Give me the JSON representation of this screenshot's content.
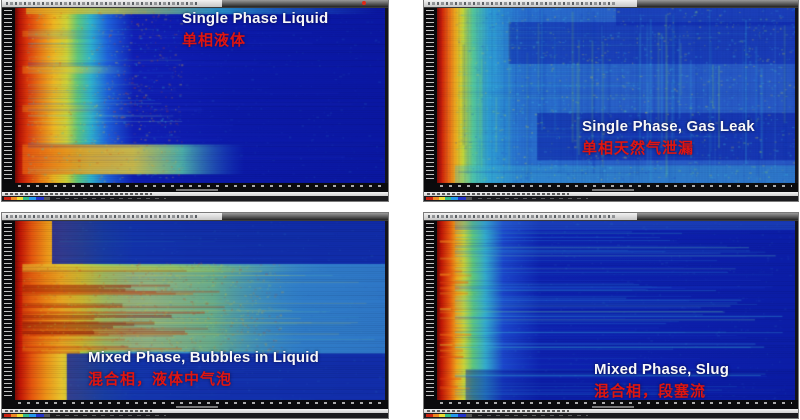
{
  "figure": {
    "background": "#ffffff",
    "label_color_en": "#f8f8f8",
    "label_color_zh": "#e01510",
    "chrome": {
      "titlebar_note": "tiny illegible spectrogram-software window title",
      "statusbar_note": "tiny illegible status text",
      "y_axis_note": "dense tiny white tick labels (illegible)",
      "x_axis_note": "dense tiny white tick labels (illegible)",
      "colorbar_colors": [
        "#cc2211",
        "#ee8822",
        "#eedd33",
        "#33bb88",
        "#2299ee",
        "#2233cc"
      ]
    }
  },
  "chart_data": [
    {
      "type": "heatmap",
      "title": "Single Phase Liquid",
      "title_zh": "单相液体",
      "colormap": "jet",
      "description": "Spectrogram: wide hot (red-orange) low-frequency band at left fading through yellow/cyan to uniform deep blue; warm horizontal band near bottom.",
      "pattern": {
        "seed": 7,
        "base": [
          [
            0,
            "#6e0a04"
          ],
          [
            0.012,
            "#b81406"
          ],
          [
            0.035,
            "#e03c0c"
          ],
          [
            0.07,
            "#ee7d14"
          ],
          [
            0.105,
            "#f0b822"
          ],
          [
            0.14,
            "#cfd438"
          ],
          [
            0.17,
            "#5fc87e"
          ],
          [
            0.205,
            "#2fb4cf"
          ],
          [
            0.25,
            "#1f63dc"
          ],
          [
            0.32,
            "#111fb6"
          ],
          [
            0.6,
            "#0c1aaa"
          ],
          [
            1,
            "#0b18a4"
          ]
        ],
        "bands": [
          {
            "x0": 0.03,
            "x1": 0.98,
            "y0": 0,
            "y1": 0.035,
            "a": 0.75,
            "grad": [
              [
                0,
                "#e8a020"
              ],
              [
                0.25,
                "#d8d840"
              ],
              [
                0.55,
                "#30b8d8"
              ],
              [
                1,
                "rgba(40,120,216,0)"
              ]
            ]
          },
          {
            "x0": 0.02,
            "x1": 0.62,
            "y0": 0.78,
            "y1": 0.95,
            "a": 0.85,
            "grad": [
              [
                0,
                "#e85a10"
              ],
              [
                0.3,
                "#f0a81e"
              ],
              [
                0.5,
                "#e8d43a"
              ],
              [
                0.72,
                "#58c8a8"
              ],
              [
                1,
                "rgba(30,100,210,0)"
              ]
            ]
          },
          {
            "x0": 0.02,
            "x1": 0.32,
            "y0": 0.33,
            "y1": 0.375,
            "a": 0.55,
            "grad": [
              [
                0,
                "#e87014"
              ],
              [
                0.45,
                "#d8cc38"
              ],
              [
                1,
                "rgba(40,150,200,0)"
              ]
            ]
          },
          {
            "x0": 0.02,
            "x1": 0.27,
            "y0": 0.555,
            "y1": 0.595,
            "a": 0.5,
            "grad": [
              [
                0,
                "#e87014"
              ],
              [
                0.45,
                "#d8cc38"
              ],
              [
                1,
                "rgba(40,150,200,0)"
              ]
            ]
          },
          {
            "x0": 0.02,
            "x1": 0.2,
            "y0": 0.13,
            "y1": 0.165,
            "a": 0.4,
            "grad": [
              [
                0,
                "#e88018"
              ],
              [
                0.5,
                "#c8cc40"
              ],
              [
                1,
                "rgba(40,150,200,0)"
              ]
            ]
          }
        ],
        "h": [
          {
            "n": 42,
            "y0": 0.04,
            "y1": 0.96,
            "x0": 0.035,
            "l0": 0.08,
            "l1": 0.42,
            "a0": 0.06,
            "a1": 0.22,
            "c": [
              "#35c8e0",
              "#2f7ae8",
              "#88d8c0"
            ],
            "t": 1
          },
          {
            "n": 26,
            "y0": 0.08,
            "y1": 0.92,
            "x0": 0.035,
            "l0": 0.3,
            "l1": 0.95,
            "a0": 0.04,
            "a1": 0.11,
            "c": [
              "#3050e8",
              "#2838c8"
            ],
            "t": 2
          }
        ],
        "sp": [
          {
            "n": 900,
            "x0": 0.03,
            "x1": 0.45,
            "y0": 0,
            "y1": 1,
            "a0": 0.05,
            "a1": 0.3,
            "c": [
              "#f0a020",
              "#e8d040",
              "#40c8c8",
              "#e05010"
            ]
          },
          {
            "n": 650,
            "x0": 0.3,
            "x1": 1,
            "y0": 0,
            "y1": 1,
            "a0": 0.03,
            "a1": 0.12,
            "c": [
              "#3060e0",
              "#40a8d8",
              "#1830b0"
            ]
          }
        ],
        "rows": 0.12
      }
    },
    {
      "type": "heatmap",
      "title": "Single Phase, Gas Leak",
      "title_zh": "单相天然气泄漏",
      "colormap": "jet",
      "description": "Spectrogram: narrow red band at left, body mottled cyan/green over medium blue with strong vertical streaking; darker blue bands at top and mid-right.",
      "pattern": {
        "seed": 11,
        "base": [
          [
            0,
            "#7c0c05"
          ],
          [
            0.012,
            "#cc1c07"
          ],
          [
            0.032,
            "#ee6812"
          ],
          [
            0.052,
            "#f0ae1e"
          ],
          [
            0.072,
            "#c8d838"
          ],
          [
            0.1,
            "#56c89a"
          ],
          [
            0.145,
            "#2f9ed6"
          ],
          [
            0.23,
            "#2a72d0"
          ],
          [
            0.5,
            "#2a62ca"
          ],
          [
            1,
            "#2858c6"
          ]
        ],
        "bands": [
          {
            "x0": 0.5,
            "x1": 1,
            "y0": 0,
            "y1": 0.1,
            "a": 0.45,
            "c": "#0c20aa"
          },
          {
            "x0": 0.2,
            "x1": 1,
            "y0": 0.08,
            "y1": 0.32,
            "a": 0.5,
            "c": "#0c20aa"
          },
          {
            "x0": 0.28,
            "x1": 1,
            "y0": 0.6,
            "y1": 0.87,
            "a": 0.55,
            "c": "#0a1ca4"
          },
          {
            "x0": 0.05,
            "x1": 1,
            "y0": 0.9,
            "y1": 1,
            "a": 0.3,
            "c": "#40c0d8"
          }
        ],
        "v": [
          {
            "n": 70,
            "x0": 0.07,
            "x1": 1,
            "y0": 0,
            "l0": 0.25,
            "l1": 0.95,
            "a0": 0.07,
            "a1": 0.22,
            "c": [
              "#38c0e0",
              "#40a0e0",
              "#1838b8",
              "#88d860"
            ],
            "t": 2
          },
          {
            "n": 30,
            "x0": 0.07,
            "x1": 1,
            "y0": 0,
            "l0": 0.5,
            "l1": 1,
            "a0": 0.05,
            "a1": 0.15,
            "c": [
              "#0e28a8",
              "#123cc0"
            ],
            "t": 3
          }
        ],
        "h": [
          {
            "n": 45,
            "y0": 0.02,
            "y1": 0.98,
            "x0": 0.06,
            "l0": 0.2,
            "l1": 0.9,
            "a0": 0.05,
            "a1": 0.16,
            "c": [
              "#40c8e0",
              "#2048c0",
              "#60d0c0"
            ],
            "t": 1
          }
        ],
        "sp": [
          {
            "n": 1700,
            "x0": 0.05,
            "x1": 1,
            "y0": 0,
            "y1": 1,
            "a0": 0.07,
            "a1": 0.28,
            "c": [
              "#48d0e0",
              "#3ab0e0",
              "#90dc60",
              "#e0e040",
              "#2050c8"
            ]
          }
        ],
        "rows": 0.07,
        "cols": 0.06
      }
    },
    {
      "type": "heatmap",
      "title": "Mixed Phase, Bubbles in Liquid",
      "title_zh": "混合相，液体中气泡",
      "colormap": "jet",
      "description": "Spectrogram: broad warm (red/orange/yellow) mid band with horizontal striations fading to teal at right; dark blue bands at top and bottom.",
      "pattern": {
        "seed": 5,
        "base": [
          [
            0,
            "#7c0b05"
          ],
          [
            0.015,
            "#c41806"
          ],
          [
            0.045,
            "#e6560e"
          ],
          [
            0.085,
            "#ee9418"
          ],
          [
            0.125,
            "#e8c42e"
          ],
          [
            0.18,
            "#a8d048"
          ],
          [
            0.24,
            "#54c49c"
          ],
          [
            0.32,
            "#3a9cd2"
          ],
          [
            0.55,
            "#3284cc"
          ],
          [
            1,
            "#2f78c8"
          ]
        ],
        "bands": [
          {
            "x0": 0.02,
            "x1": 0.78,
            "y0": 0.25,
            "y1": 0.73,
            "a": 0.5,
            "grad": [
              [
                0,
                "#e05c0e"
              ],
              [
                0.22,
                "#ee9c1a"
              ],
              [
                0.45,
                "#e6cc34"
              ],
              [
                0.68,
                "#9cd44e"
              ],
              [
                1,
                "rgba(60,160,200,0)"
              ]
            ]
          },
          {
            "x0": 0.02,
            "x1": 0.85,
            "y0": 0.24,
            "y1": 0.285,
            "a": 0.55,
            "grad": [
              [
                0,
                "#e8c030"
              ],
              [
                0.5,
                "#a8d44a"
              ],
              [
                1,
                "rgba(80,180,200,0)"
              ]
            ]
          },
          {
            "x0": 0.1,
            "x1": 1,
            "y0": 0,
            "y1": 0.24,
            "a": 0.82,
            "c": "#0b1ca4"
          },
          {
            "x0": 0.14,
            "x1": 1,
            "y0": 0.74,
            "y1": 1,
            "a": 0.8,
            "c": "#0b1ca4"
          }
        ],
        "h": [
          {
            "n": 26,
            "y0": 0.25,
            "y1": 0.73,
            "x0": 0.02,
            "l0": 0.15,
            "l1": 0.55,
            "a0": 0.15,
            "a1": 0.45,
            "c": [
              "#c82808",
              "#e06010",
              "#a82008"
            ],
            "t": 2
          },
          {
            "n": 8,
            "y0": 0.34,
            "y1": 0.7,
            "x0": 0.02,
            "l0": 0.18,
            "l1": 0.45,
            "a0": 0.3,
            "a1": 0.5,
            "c": [
              "#901606"
            ],
            "t": 3
          },
          {
            "n": 30,
            "y0": 0.25,
            "y1": 0.73,
            "x0": 0.3,
            "l0": 0.3,
            "l1": 0.68,
            "a0": 0.08,
            "a1": 0.2,
            "c": [
              "#e8d840",
              "#70d0b0",
              "#40b8d8"
            ],
            "t": 1
          },
          {
            "n": 16,
            "y0": 0,
            "y1": 0.24,
            "x0": 0.12,
            "l0": 0.3,
            "l1": 0.85,
            "a0": 0.04,
            "a1": 0.12,
            "c": [
              "#3358d8",
              "#38a8d8"
            ],
            "t": 1
          },
          {
            "n": 14,
            "y0": 0.76,
            "y1": 1,
            "x0": 0.14,
            "l0": 0.3,
            "l1": 0.85,
            "a0": 0.04,
            "a1": 0.12,
            "c": [
              "#3358d8",
              "#38a8d8"
            ],
            "t": 1
          }
        ],
        "sp": [
          {
            "n": 950,
            "x0": 0.02,
            "x1": 0.72,
            "y0": 0.23,
            "y1": 0.75,
            "a0": 0.08,
            "a1": 0.24,
            "c": [
              "#e87014",
              "#e8c030",
              "#b0d850",
              "#d83008"
            ]
          },
          {
            "n": 450,
            "x0": 0.1,
            "x1": 1,
            "y0": 0,
            "y1": 1,
            "a0": 0.04,
            "a1": 0.12,
            "c": [
              "#3060d0",
              "#40a8d8"
            ]
          }
        ],
        "rows": 0.12
      }
    },
    {
      "type": "heatmap",
      "title": "Mixed Phase, Slug",
      "title_zh": "混合相，段塞流",
      "colormap": "jet",
      "description": "Spectrogram: narrow red-orange band at left, deep blue body crossed by many thin horizontal cyan streak lines.",
      "pattern": {
        "seed": 13,
        "base": [
          [
            0,
            "#700a04"
          ],
          [
            0.012,
            "#c01606"
          ],
          [
            0.035,
            "#e6560e"
          ],
          [
            0.055,
            "#eea81c"
          ],
          [
            0.075,
            "#ccd438"
          ],
          [
            0.1,
            "#60c87c"
          ],
          [
            0.135,
            "#34accc"
          ],
          [
            0.185,
            "#1c46cc"
          ],
          [
            0.29,
            "#0e22b0"
          ],
          [
            1,
            "#0c1ea8"
          ]
        ],
        "bands": [
          {
            "x0": 0.05,
            "x1": 1,
            "y0": 0,
            "y1": 0.05,
            "a": 0.3,
            "c": "#3880d8"
          },
          {
            "x0": 0.08,
            "x1": 1,
            "y0": 0.83,
            "y1": 1,
            "a": 0.45,
            "c": "#0a1aa0"
          }
        ],
        "h": [
          {
            "n": 85,
            "y0": 0.02,
            "y1": 0.98,
            "x0": 0.05,
            "l0": 0.45,
            "l1": 0.93,
            "a0": 0.07,
            "a1": 0.26,
            "c": [
              "#38c0e0",
              "#2f8ee0",
              "#2448d0"
            ],
            "t": 1
          },
          {
            "n": 16,
            "y0": 0.05,
            "y1": 0.9,
            "x0": 0.05,
            "l0": 0.6,
            "l1": 0.93,
            "a0": 0.18,
            "a1": 0.38,
            "c": [
              "#44d0e8",
              "#6cd8b8"
            ],
            "t": 1
          },
          {
            "n": 22,
            "y0": 0.04,
            "y1": 0.96,
            "x0": 0.008,
            "l0": 0.02,
            "l1": 0.09,
            "a0": 0.2,
            "a1": 0.5,
            "c": [
              "#f08018",
              "#e8c030",
              "#e84810"
            ],
            "t": 2
          }
        ],
        "sp": [
          {
            "n": 650,
            "x0": 0.05,
            "x1": 1,
            "y0": 0,
            "y1": 1,
            "a0": 0.03,
            "a1": 0.12,
            "c": [
              "#3868d8",
              "#40b0d8"
            ]
          }
        ],
        "rows": 0.1
      }
    }
  ]
}
